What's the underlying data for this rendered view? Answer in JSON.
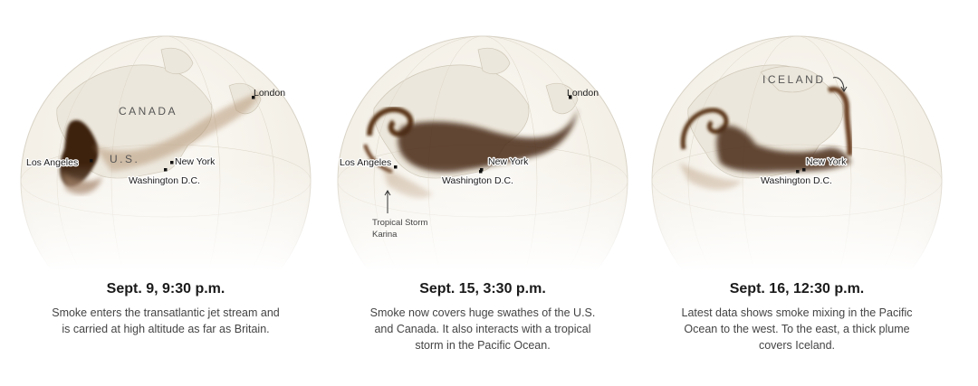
{
  "panels": [
    {
      "title": "Sept. 9, 9:30 p.m.",
      "description": "Smoke enters the transatlantic jet stream and is carried at high altitude as far as Britain.",
      "labels": {
        "canada": "CANADA",
        "us": "U.S.",
        "london": "London",
        "los_angeles": "Los Angeles",
        "new_york": "New York",
        "washington": "Washington D.C."
      }
    },
    {
      "title": "Sept. 15, 3:30 p.m.",
      "description": "Smoke now covers huge swathes of the U.S. and Canada. It also interacts with a tropical storm in the Pacific Ocean.",
      "labels": {
        "london": "London",
        "los_angeles": "Los Angeles",
        "new_york": "New York",
        "washington": "Washington D.C.",
        "storm_line1": "Tropical Storm",
        "storm_line2": "Karina"
      }
    },
    {
      "title": "Sept. 16, 12:30 p.m.",
      "description": "Latest data shows smoke mixing in the Pacific Ocean to the west. To the east, a thick plume covers Iceland.",
      "labels": {
        "iceland": "ICELAND",
        "new_york": "New York",
        "washington": "Washington D.C."
      }
    }
  ],
  "colors": {
    "globe": "#f6f3ec",
    "land": "#efeae0",
    "smoke": "#4a2a12",
    "smoke_light": "#b39070"
  }
}
